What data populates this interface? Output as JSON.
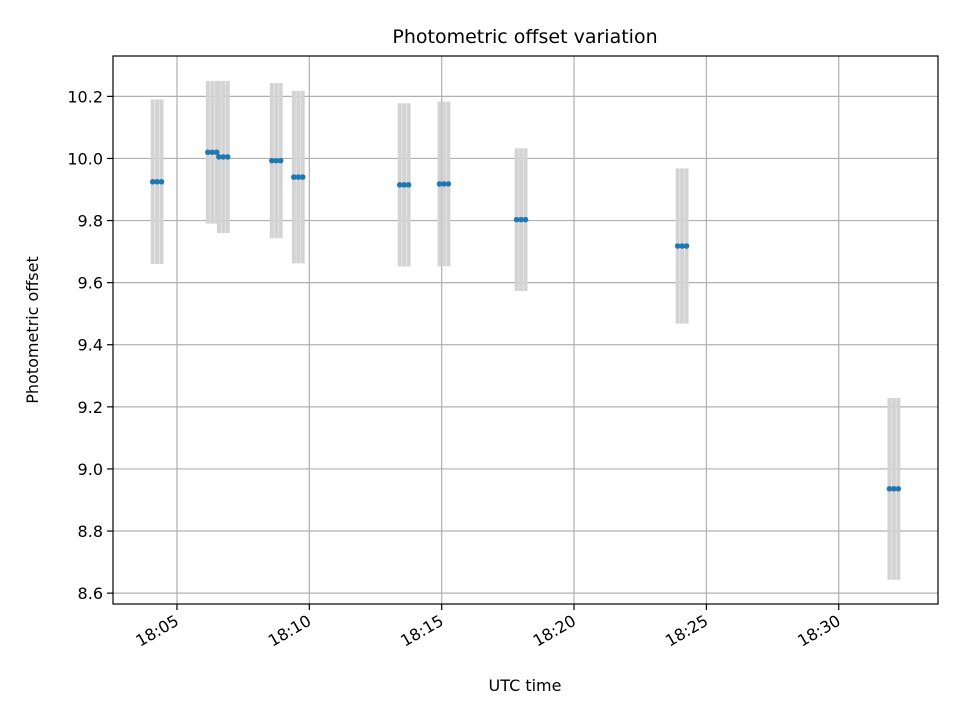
{
  "chart_data": {
    "type": "scatter",
    "title": "Photometric offset variation",
    "xlabel": "UTC time",
    "ylabel": "Photometric offset",
    "ylim": [
      8.565,
      10.33
    ],
    "xlim": [
      "18:02:35",
      "18:33:45"
    ],
    "grid": true,
    "legend": "none",
    "x_ticks": [
      "18:05",
      "18:10",
      "18:15",
      "18:20",
      "18:25",
      "18:30"
    ],
    "y_ticks": [
      "8.6",
      "8.8",
      "9.0",
      "9.2",
      "9.4",
      "9.6",
      "9.8",
      "10.0",
      "10.2"
    ],
    "colors": {
      "points": "#1f77b4",
      "errorbars": "#d3d3d3",
      "grid": "#b0b0b0"
    },
    "groups": [
      {
        "times": [
          "18:04:05",
          "18:04:15",
          "18:04:25"
        ],
        "y": 9.925,
        "err": 0.265
      },
      {
        "times": [
          "18:06:10",
          "18:06:20",
          "18:06:30"
        ],
        "y": 10.02,
        "err": 0.23
      },
      {
        "times": [
          "18:06:35",
          "18:06:45",
          "18:06:55"
        ],
        "y": 10.005,
        "err": 0.245
      },
      {
        "times": [
          "18:08:35",
          "18:08:45",
          "18:08:55"
        ],
        "y": 9.993,
        "err": 0.25
      },
      {
        "times": [
          "18:09:25",
          "18:09:35",
          "18:09:45"
        ],
        "y": 9.94,
        "err": 0.278
      },
      {
        "times": [
          "18:13:25",
          "18:13:35",
          "18:13:45"
        ],
        "y": 9.915,
        "err": 0.263
      },
      {
        "times": [
          "18:14:55",
          "18:15:05",
          "18:15:15"
        ],
        "y": 9.918,
        "err": 0.265
      },
      {
        "times": [
          "18:17:50",
          "18:18:00",
          "18:18:10"
        ],
        "y": 9.803,
        "err": 0.23
      },
      {
        "times": [
          "18:23:55",
          "18:24:05",
          "18:24:15"
        ],
        "y": 9.718,
        "err": 0.25
      },
      {
        "times": [
          "18:31:55",
          "18:32:05",
          "18:32:15"
        ],
        "y": 8.936,
        "err": 0.293
      }
    ]
  }
}
